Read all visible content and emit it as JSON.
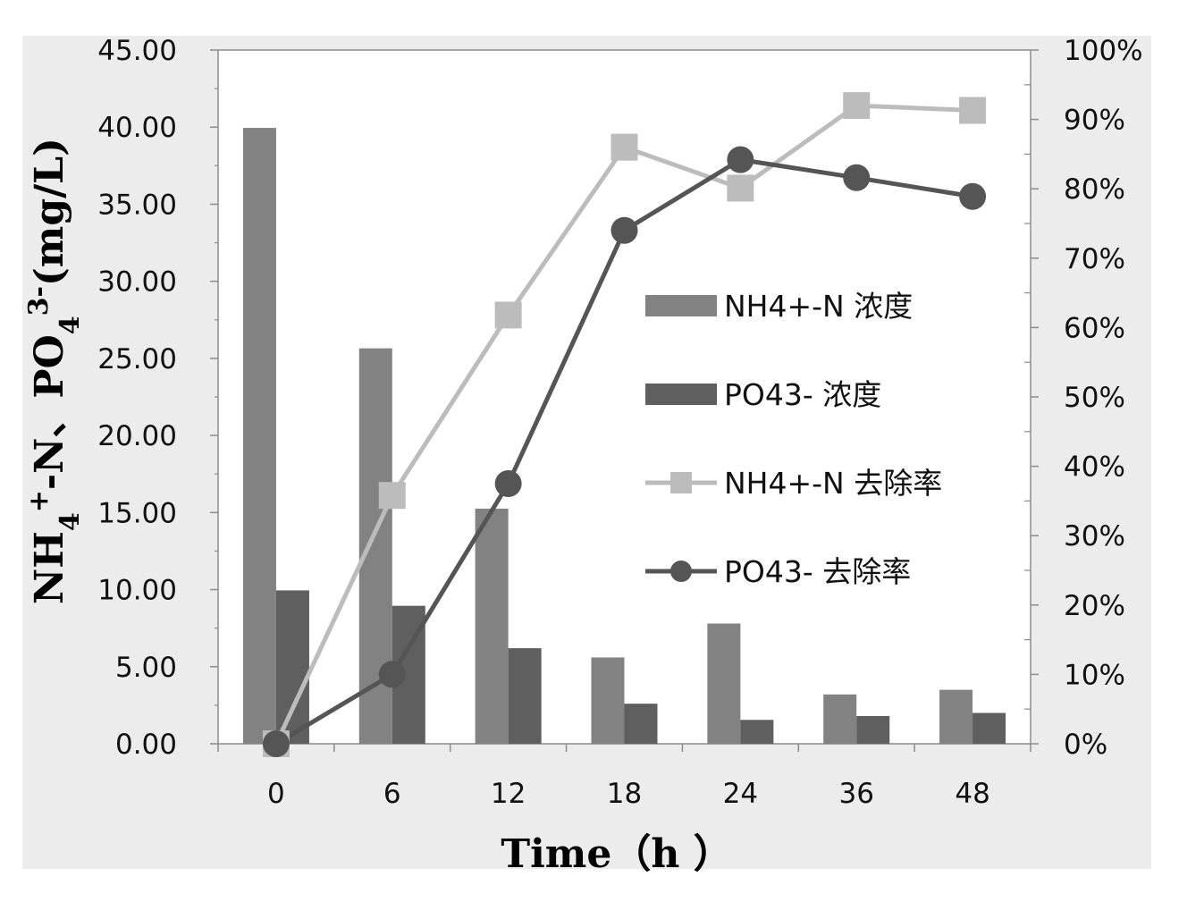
{
  "chart_data": {
    "type": "bar",
    "categories": [
      "0",
      "6",
      "12",
      "18",
      "24",
      "36",
      "48"
    ],
    "xlabel": "Time（h ）",
    "ylabel": {
      "parts": [
        "NH",
        "4",
        "+",
        "-N、PO",
        "4",
        "3-",
        "(mg/L)"
      ]
    },
    "y_left": {
      "min": 0,
      "max": 45,
      "step": 5,
      "tick_labels": [
        "0.00",
        "5.00",
        "10.00",
        "15.00",
        "20.00",
        "25.00",
        "30.00",
        "35.00",
        "40.00",
        "45.00"
      ]
    },
    "y_right": {
      "min": 0,
      "max": 100,
      "step": 10,
      "tick_labels": [
        "0%",
        "10%",
        "20%",
        "30%",
        "40%",
        "50%",
        "60%",
        "70%",
        "80%",
        "90%",
        "100%"
      ]
    },
    "grid": false,
    "legend": "center-right",
    "series": [
      {
        "name": "NH4+-N 浓度",
        "kind": "bar",
        "axis": "left",
        "color": "#828282",
        "values": [
          39.95,
          25.65,
          15.25,
          5.6,
          7.8,
          3.2,
          3.5
        ]
      },
      {
        "name": "PO43- 浓度",
        "kind": "bar",
        "axis": "left",
        "color": "#5f5f5f",
        "values": [
          9.95,
          8.95,
          6.2,
          2.6,
          1.55,
          1.8,
          2.0
        ]
      },
      {
        "name": "NH4+-N 去除率",
        "kind": "line",
        "marker": "square",
        "axis": "right",
        "color": "#bcbcbc",
        "values": [
          0,
          35.8,
          61.8,
          86,
          80.1,
          92,
          91.3
        ]
      },
      {
        "name": "PO43- 去除率",
        "kind": "line",
        "marker": "circle",
        "axis": "right",
        "color": "#555555",
        "values": [
          0,
          10,
          37.5,
          74,
          84.2,
          81.6,
          78.9
        ]
      }
    ]
  }
}
